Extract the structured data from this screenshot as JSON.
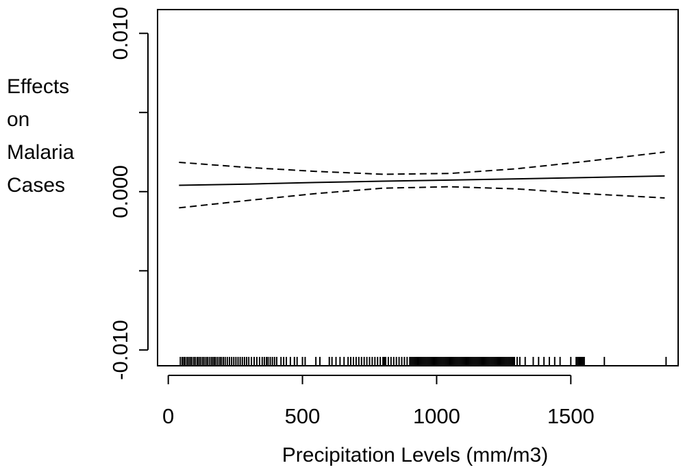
{
  "chart_data": {
    "type": "line",
    "title": "",
    "xlabel": "Precipitation Levels (mm/m3)",
    "ylabel_lines": [
      "Effects",
      "on",
      "Malaria",
      "Cases"
    ],
    "xlim": [
      -40,
      1900
    ],
    "ylim": [
      -0.011,
      0.0115
    ],
    "x_ticks": [
      0,
      500,
      1000,
      1500
    ],
    "x_tick_labels": [
      "0",
      "500",
      "1000",
      "1500"
    ],
    "y_ticks": [
      -0.01,
      -0.005,
      0,
      0.005,
      0.01
    ],
    "y_tick_labels": [
      "-0.010",
      "",
      "0.000",
      "",
      "0.010"
    ],
    "grid": false,
    "legend": "none",
    "series": [
      {
        "style": "solid",
        "x": [
          40,
          300,
          550,
          800,
          1050,
          1300,
          1550,
          1850
        ],
        "y": [
          0.0004,
          0.00048,
          0.00058,
          0.00066,
          0.00073,
          0.00081,
          0.00089,
          0.00099
        ]
      },
      {
        "style": "dashed",
        "x": [
          40,
          300,
          550,
          800,
          1050,
          1300,
          1550,
          1850
        ],
        "y": [
          0.00185,
          0.00152,
          0.00128,
          0.0011,
          0.00115,
          0.00145,
          0.0019,
          0.0025
        ]
      },
      {
        "style": "dashed",
        "x": [
          40,
          300,
          550,
          800,
          1050,
          1300,
          1550,
          1850
        ],
        "y": [
          -0.00102,
          -0.00055,
          -0.00012,
          0.00022,
          0.00031,
          0.00017,
          -0.00012,
          -0.0004
        ]
      }
    ],
    "rug": [
      45,
      52,
      58,
      63,
      70,
      76,
      82,
      88,
      95,
      101,
      108,
      114,
      120,
      127,
      133,
      140,
      146,
      153,
      160,
      166,
      172,
      178,
      185,
      192,
      198,
      205,
      212,
      220,
      228,
      236,
      244,
      252,
      260,
      268,
      276,
      284,
      292,
      300,
      310,
      320,
      330,
      340,
      350,
      358,
      366,
      372,
      380,
      388,
      396,
      404,
      420,
      430,
      440,
      455,
      470,
      480,
      500,
      510,
      550,
      565,
      600,
      610,
      625,
      640,
      655,
      670,
      680,
      690,
      700,
      710,
      720,
      730,
      740,
      750,
      760,
      770,
      780,
      790,
      800,
      805,
      810,
      820,
      830,
      840,
      850,
      860,
      870,
      880,
      890,
      900,
      905,
      910,
      915,
      920,
      925,
      930,
      935,
      940,
      945,
      950,
      955,
      960,
      965,
      970,
      975,
      980,
      985,
      990,
      995,
      1000,
      1005,
      1010,
      1015,
      1020,
      1025,
      1030,
      1035,
      1040,
      1045,
      1050,
      1055,
      1060,
      1065,
      1070,
      1075,
      1080,
      1085,
      1090,
      1095,
      1100,
      1105,
      1110,
      1115,
      1120,
      1125,
      1130,
      1135,
      1140,
      1145,
      1150,
      1155,
      1160,
      1165,
      1170,
      1175,
      1180,
      1185,
      1190,
      1195,
      1200,
      1205,
      1210,
      1215,
      1220,
      1225,
      1230,
      1235,
      1240,
      1245,
      1250,
      1255,
      1260,
      1265,
      1270,
      1275,
      1280,
      1285,
      1290,
      1300,
      1310,
      1330,
      1360,
      1380,
      1400,
      1420,
      1440,
      1460,
      1500,
      1520,
      1525,
      1530,
      1535,
      1540,
      1545,
      1550,
      1625,
      1855
    ]
  }
}
